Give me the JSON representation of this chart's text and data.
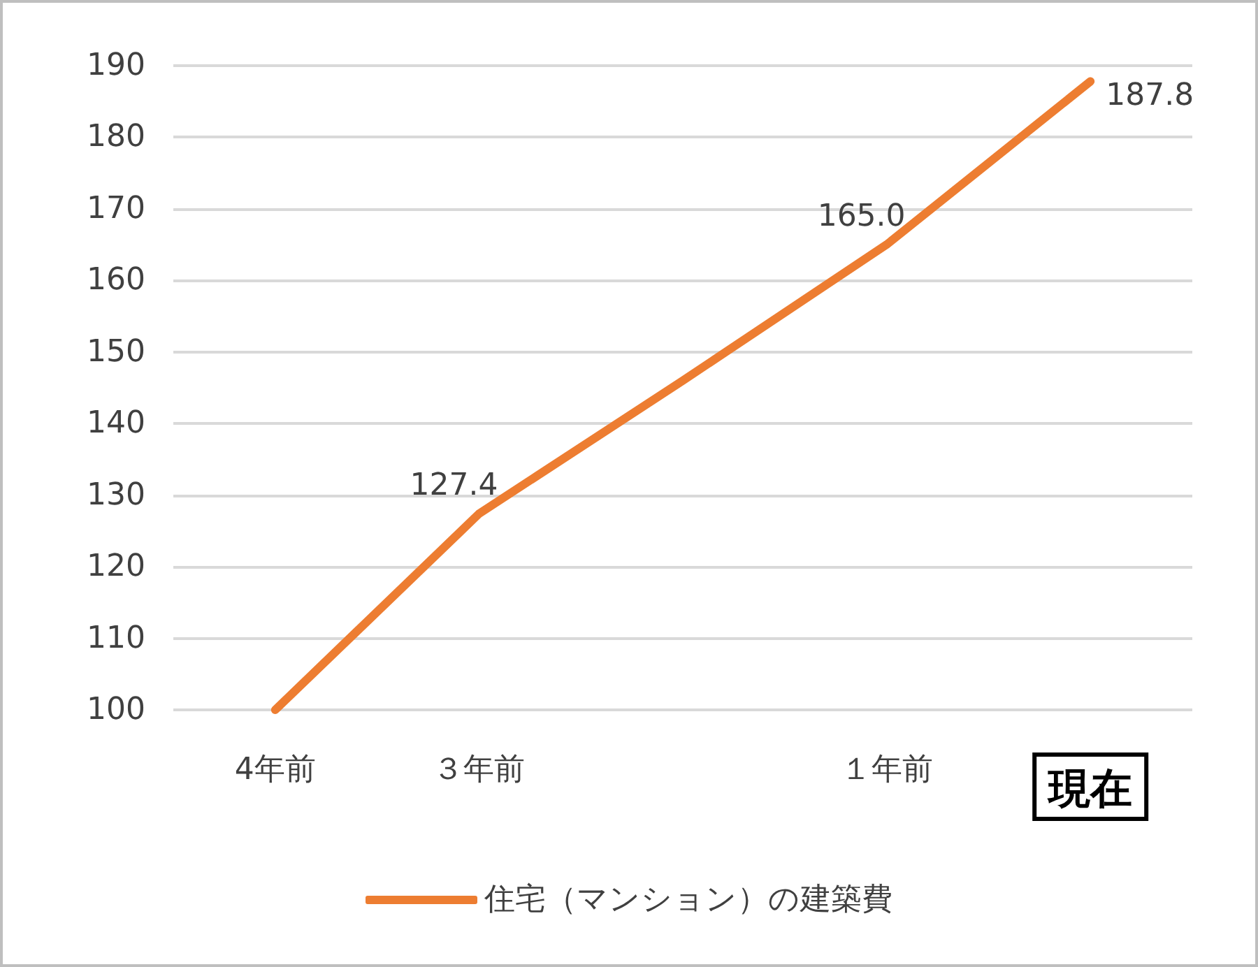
{
  "chart_data": {
    "type": "line",
    "categories": [
      "4年前",
      "３年前",
      null,
      "１年前",
      "現在"
    ],
    "series": [
      {
        "name": "住宅（マンション）の建築費",
        "color": "#ed7d31",
        "values": [
          100,
          127.4,
          146,
          165.0,
          187.8
        ],
        "value_labels": [
          null,
          "127.4",
          null,
          "165.0",
          "187.8"
        ]
      }
    ],
    "ylim": [
      100,
      190
    ],
    "yticks": [
      100,
      110,
      120,
      130,
      140,
      150,
      160,
      170,
      180,
      190
    ],
    "grid": "y",
    "legend": "bottom",
    "marker": "none",
    "line_style": "solid"
  }
}
